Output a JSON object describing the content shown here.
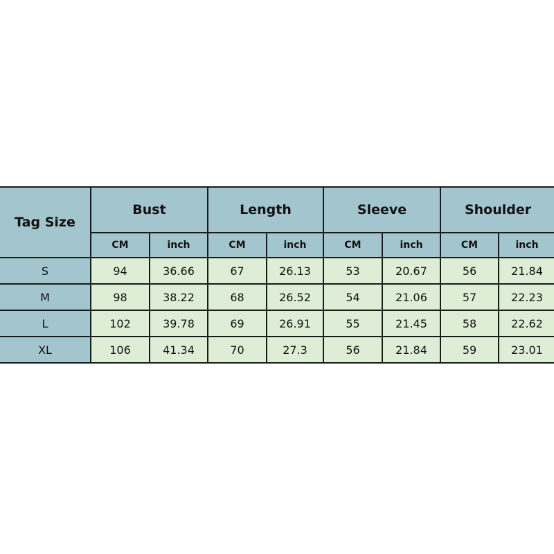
{
  "table": {
    "tag_header": "Tag Size",
    "groups": [
      "Bust",
      "Length",
      "Sleeve",
      "Shoulder"
    ],
    "units": [
      "CM",
      "inch"
    ],
    "rows": [
      {
        "size": "S",
        "values": [
          "94",
          "36.66",
          "67",
          "26.13",
          "53",
          "20.67",
          "56",
          "21.84"
        ]
      },
      {
        "size": "M",
        "values": [
          "98",
          "38.22",
          "68",
          "26.52",
          "54",
          "21.06",
          "57",
          "22.23"
        ]
      },
      {
        "size": "L",
        "values": [
          "102",
          "39.78",
          "69",
          "26.91",
          "55",
          "21.45",
          "58",
          "22.62"
        ]
      },
      {
        "size": "XL",
        "values": [
          "106",
          "41.34",
          "70",
          "27.3",
          "56",
          "21.84",
          "59",
          "23.01"
        ]
      }
    ]
  },
  "colors": {
    "header": "#a3c5cd",
    "cell": "#deeed6",
    "border": "#1a1a1a"
  }
}
